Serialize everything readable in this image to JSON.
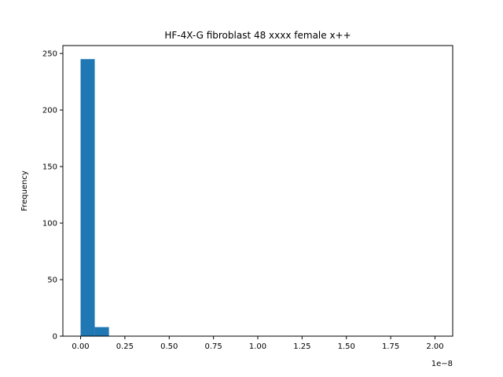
{
  "chart_data": {
    "type": "bar",
    "title": "HF-4X-G fibroblast 48 xxxx female x++",
    "xlabel": "",
    "ylabel": "Frequency",
    "x_offset_label": "1e−8",
    "bin_width": 0.08,
    "bins": [
      {
        "start": 0.0,
        "end": 0.08,
        "value": 245
      },
      {
        "start": 0.08,
        "end": 0.16,
        "value": 8
      }
    ],
    "xlim": [
      -0.1,
      2.1
    ],
    "ylim": [
      0,
      257
    ],
    "xticks": [
      {
        "value": 0.0,
        "label": "0.00"
      },
      {
        "value": 0.25,
        "label": "0.25"
      },
      {
        "value": 0.5,
        "label": "0.50"
      },
      {
        "value": 0.75,
        "label": "0.75"
      },
      {
        "value": 1.0,
        "label": "1.00"
      },
      {
        "value": 1.25,
        "label": "1.25"
      },
      {
        "value": 1.5,
        "label": "1.50"
      },
      {
        "value": 1.75,
        "label": "1.75"
      },
      {
        "value": 2.0,
        "label": "2.00"
      }
    ],
    "yticks": [
      {
        "value": 0,
        "label": "0"
      },
      {
        "value": 50,
        "label": "50"
      },
      {
        "value": 100,
        "label": "100"
      },
      {
        "value": 150,
        "label": "150"
      },
      {
        "value": 200,
        "label": "200"
      },
      {
        "value": 250,
        "label": "250"
      }
    ],
    "grid": false,
    "bar_color": "#1f77b4"
  }
}
